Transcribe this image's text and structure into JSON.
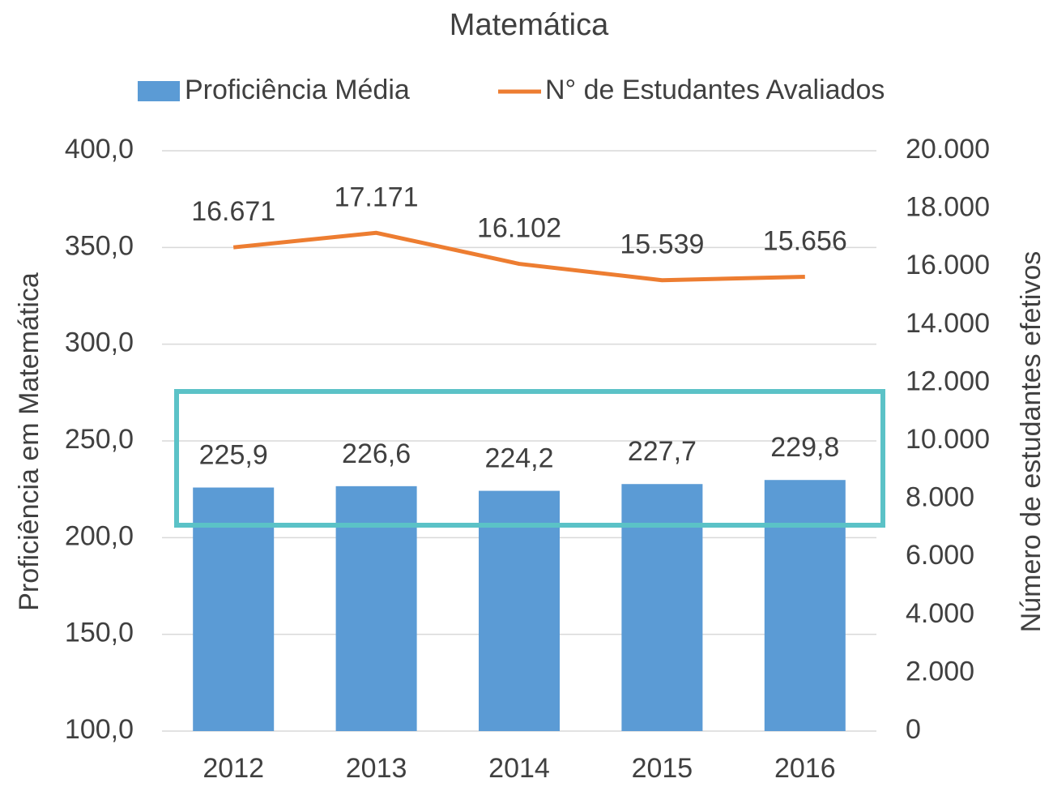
{
  "chart_data": {
    "type": "bar_line",
    "title": "Matemática",
    "categories": [
      "2012",
      "2013",
      "2014",
      "2015",
      "2016"
    ],
    "series": [
      {
        "name": "Proficiência Média",
        "type": "bar",
        "axis": "y",
        "color": "#5b9bd5",
        "values": [
          225.9,
          226.6,
          224.2,
          227.7,
          229.8
        ],
        "value_labels": [
          "225,9",
          "226,6",
          "224,2",
          "227,7",
          "229,8"
        ]
      },
      {
        "name": "N° de Estudantes Avaliados",
        "type": "line",
        "axis": "y2",
        "color": "#ed7d31",
        "values": [
          16671,
          17171,
          16102,
          15539,
          15656
        ],
        "value_labels": [
          "16.671",
          "17.171",
          "16.102",
          "15.539",
          "15.656"
        ]
      }
    ],
    "ylabel": "Proficiência em Matemática",
    "y2label": "Número de estudantes efetivos",
    "ylim": [
      100,
      400
    ],
    "yticks": [
      {
        "value": 100,
        "label": "100,0"
      },
      {
        "value": 150,
        "label": "150,0"
      },
      {
        "value": 200,
        "label": "200,0"
      },
      {
        "value": 250,
        "label": "250,0"
      },
      {
        "value": 300,
        "label": "300,0"
      },
      {
        "value": 350,
        "label": "350,0"
      },
      {
        "value": 400,
        "label": "400,0"
      }
    ],
    "y2lim": [
      0,
      20000
    ],
    "y2ticks": [
      0,
      {
        "value": 2000,
        "label": "2.000"
      },
      {
        "value": 4000,
        "label": "4.000"
      },
      {
        "value": 6000,
        "label": "6.000"
      },
      {
        "value": 8000,
        "label": "8.000"
      },
      {
        "value": 10000,
        "label": "10.000"
      },
      {
        "value": 12000,
        "label": "12.000"
      },
      {
        "value": 14000,
        "label": "14.000"
      },
      {
        "value": 16000,
        "label": "16.000"
      },
      {
        "value": 18000,
        "label": "18.000"
      },
      {
        "value": 20000,
        "label": "20.000"
      }
    ],
    "grid": true,
    "legend": "top"
  }
}
